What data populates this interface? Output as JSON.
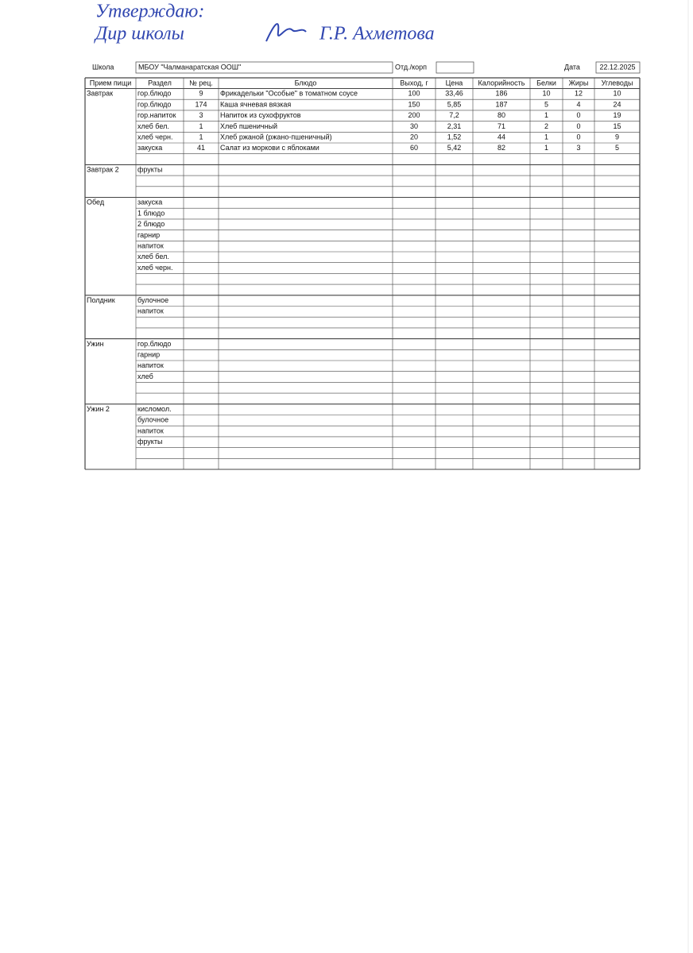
{
  "approval": {
    "line1": "Утверждаю:",
    "line2": "Дир школы",
    "signer": "Г.Р. Ахметова"
  },
  "header": {
    "school_label": "Школа",
    "school": "МБОУ \"Чалманаратская ООШ\"",
    "dept_label": "Отд./корп",
    "date_label": "Дата",
    "date": "22.12.2025"
  },
  "table": {
    "columns": [
      "Прием пищи",
      "Раздел",
      "№ рец.",
      "Блюдо",
      "Выход, г",
      "Цена",
      "Калорийность",
      "Белки",
      "Жиры",
      "Углеводы"
    ],
    "sections": [
      {
        "meal": "Завтрак",
        "rows": [
          [
            "гор.блюдо",
            "9",
            "Фрикадельки \"Особые\" в томатном соусе",
            "100",
            "33,46",
            "186",
            "10",
            "12",
            "10"
          ],
          [
            "гор.блюдо",
            "174",
            "Каша ячневая вязкая",
            "150",
            "5,85",
            "187",
            "5",
            "4",
            "24"
          ],
          [
            "гор.напиток",
            "3",
            "Напиток из  сухофруктов",
            "200",
            "7,2",
            "80",
            "1",
            "0",
            "19"
          ],
          [
            "хлеб бел.",
            "1",
            "Хлеб пшеничный",
            "30",
            "2,31",
            "71",
            "2",
            "0",
            "15"
          ],
          [
            "хлеб черн.",
            "1",
            "Хлеб ржаной (ржано-пшеничный)",
            "20",
            "1,52",
            "44",
            "1",
            "0",
            "9"
          ],
          [
            "закуска",
            "41",
            "Салат из моркови с яблоками",
            "60",
            "5,42",
            "82",
            "1",
            "3",
            "5"
          ]
        ]
      },
      {
        "meal": "Завтрак 2",
        "rows": [
          [
            "фрукты"
          ]
        ]
      },
      {
        "meal": "Обед",
        "rows": [
          [
            "закуска"
          ],
          [
            "1 блюдо"
          ],
          [
            "2 блюдо"
          ],
          [
            "гарнир"
          ],
          [
            "напиток"
          ],
          [
            "хлеб бел."
          ],
          [
            "хлеб черн."
          ]
        ]
      },
      {
        "meal": "Полдник",
        "rows": [
          [
            "булочное"
          ],
          [
            "напиток"
          ]
        ]
      },
      {
        "meal": "Ужин",
        "rows": [
          [
            "гор.блюдо"
          ],
          [
            "гарнир"
          ],
          [
            "напиток"
          ],
          [
            "хлеб"
          ]
        ]
      },
      {
        "meal": "Ужин 2",
        "rows": [
          [
            "кисломол."
          ],
          [
            "булочное"
          ],
          [
            "напиток"
          ],
          [
            "фрукты"
          ]
        ]
      }
    ]
  }
}
